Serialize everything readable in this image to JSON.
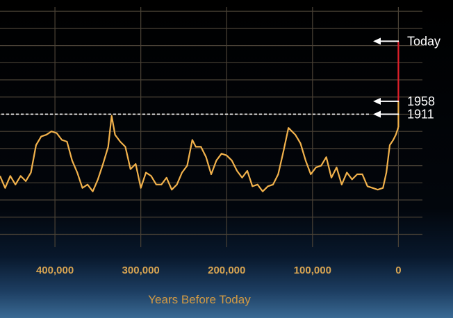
{
  "chart_data": {
    "type": "line",
    "title": "",
    "xlabel": "Years Before Today",
    "ylabel": "",
    "xlim": [
      464000,
      -28000
    ],
    "ylim": [
      145,
      425
    ],
    "x_ticks": [
      400000,
      300000,
      200000,
      100000,
      0
    ],
    "x_tick_labels": [
      "400,000",
      "300,000",
      "200,000",
      "100,000",
      "0"
    ],
    "y_gridlines": [
      160,
      180,
      200,
      220,
      240,
      260,
      280,
      300,
      320,
      340,
      360,
      380,
      400,
      420
    ],
    "grid": true,
    "colors": {
      "historic": "#f2b24c",
      "modern": "#e0202a",
      "grid": "#4a4236",
      "dashed": "#ffffff",
      "ticks": "#d7a452",
      "xlabel": "#d29a44",
      "markers": "#ffffff"
    },
    "reference_line": {
      "y": 300,
      "style": "dashed"
    },
    "series": [
      {
        "x": [
          464000,
          458000,
          452000,
          446000,
          440000,
          434000,
          428000,
          422000,
          416000,
          410000,
          404000,
          398000,
          392000,
          386000,
          380000,
          374000,
          368000,
          362000,
          356000,
          350000,
          344000,
          338000,
          334000,
          330000,
          324000,
          318000,
          312000,
          306000,
          300000,
          294000,
          288000,
          282000,
          276000,
          270000,
          264000,
          258000,
          252000,
          246000,
          240000,
          236000,
          230000,
          224000,
          218000,
          212000,
          206000,
          200000,
          194000,
          188000,
          182000,
          176000,
          170000,
          164000,
          158000,
          152000,
          146000,
          140000,
          134000,
          128000,
          124000,
          120000,
          114000,
          108000,
          102000,
          96000,
          90000,
          84000,
          78000,
          72000,
          66000,
          60000,
          54000,
          48000,
          42000,
          36000,
          30000,
          24000,
          18000,
          14000,
          10000,
          6000,
          3000,
          1000,
          0
        ],
        "y": [
          228,
          214,
          228,
          218,
          228,
          222,
          232,
          264,
          274,
          276,
          280,
          278,
          270,
          268,
          246,
          232,
          214,
          218,
          210,
          224,
          242,
          262,
          298,
          276,
          268,
          262,
          236,
          242,
          214,
          232,
          228,
          218,
          218,
          226,
          212,
          218,
          232,
          240,
          270,
          262,
          262,
          250,
          230,
          246,
          254,
          252,
          246,
          234,
          226,
          234,
          216,
          218,
          210,
          216,
          218,
          230,
          256,
          284,
          280,
          276,
          266,
          246,
          230,
          238,
          240,
          250,
          226,
          238,
          218,
          232,
          224,
          230,
          230,
          216,
          214,
          212,
          214,
          232,
          264,
          270,
          276,
          282,
          285
        ]
      },
      {
        "x": [
          0,
          0
        ],
        "y": [
          285,
          315
        ]
      },
      {
        "x": [
          0,
          0
        ],
        "y": [
          315,
          385
        ]
      }
    ],
    "annotations": [
      {
        "label": "Today",
        "y": 385
      },
      {
        "label": "1958",
        "y": 315
      },
      {
        "label": "1911",
        "y": 300
      }
    ]
  }
}
